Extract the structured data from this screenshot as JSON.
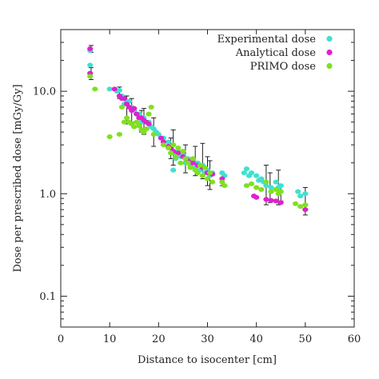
{
  "chart_data": {
    "type": "scatter",
    "xlabel": "Distance to isocenter [cm]",
    "ylabel": "Dose per prescribed dose [mGy/Gy]",
    "xlim": [
      0,
      60
    ],
    "ylim": [
      0.05,
      40
    ],
    "yscale": "log",
    "x_ticks": [
      0,
      10,
      20,
      30,
      40,
      50,
      60
    ],
    "y_ticks": [
      {
        "value": 0.1,
        "label": "0.1"
      },
      {
        "value": 1,
        "label": "1.0"
      },
      {
        "value": 10,
        "label": "10.0"
      }
    ],
    "grid": false,
    "legend_position": "top-right",
    "series": [
      {
        "name": "Experimental dose",
        "color": "#40e0d0",
        "points": [
          [
            6,
            18
          ],
          [
            6,
            25
          ],
          [
            10,
            10.5
          ],
          [
            11.5,
            10
          ],
          [
            12,
            10.2
          ],
          [
            12.5,
            9
          ],
          [
            13,
            7.5
          ],
          [
            13.5,
            8
          ],
          [
            14,
            8
          ],
          [
            14.5,
            7
          ],
          [
            15,
            6.5
          ],
          [
            15.5,
            6
          ],
          [
            16,
            6
          ],
          [
            16.5,
            5
          ],
          [
            17,
            5.5
          ],
          [
            17.5,
            5
          ],
          [
            18,
            5
          ],
          [
            18.5,
            4.5
          ],
          [
            19,
            4.3
          ],
          [
            19.5,
            4
          ],
          [
            20,
            3.8
          ],
          [
            21,
            3.5
          ],
          [
            22,
            3.2
          ],
          [
            22.5,
            2.8
          ],
          [
            23,
            2.5
          ],
          [
            23.5,
            2.2
          ],
          [
            24,
            2.6
          ],
          [
            24.5,
            2.3
          ],
          [
            25,
            2.4
          ],
          [
            25.5,
            2.0
          ],
          [
            26,
            2.2
          ],
          [
            26.5,
            1.9
          ],
          [
            27,
            2.1
          ],
          [
            27.5,
            1.8
          ],
          [
            28,
            2.0
          ],
          [
            28.5,
            1.7
          ],
          [
            29,
            1.9
          ],
          [
            29.5,
            1.6
          ],
          [
            30,
            1.7
          ],
          [
            30.5,
            1.5
          ],
          [
            31,
            1.6
          ],
          [
            23,
            1.7
          ],
          [
            33,
            1.6
          ],
          [
            33.5,
            1.5
          ],
          [
            37.5,
            1.6
          ],
          [
            38,
            1.75
          ],
          [
            38.5,
            1.5
          ],
          [
            39,
            1.6
          ],
          [
            40,
            1.5
          ],
          [
            40.5,
            1.35
          ],
          [
            41,
            1.4
          ],
          [
            41.5,
            1.3
          ],
          [
            42,
            1.2
          ],
          [
            43,
            1.15
          ],
          [
            44,
            1.3
          ],
          [
            44.5,
            1.15
          ],
          [
            45,
            1.2
          ],
          [
            48.5,
            1.05
          ],
          [
            49,
            0.95
          ],
          [
            50,
            1.0
          ]
        ]
      },
      {
        "name": "Analytical dose",
        "color": "#e020d0",
        "points": [
          [
            6,
            26
          ],
          [
            6,
            15
          ],
          [
            11,
            10.5
          ],
          [
            12,
            9
          ],
          [
            12.5,
            8.5
          ],
          [
            13,
            8.5
          ],
          [
            13.5,
            7.5
          ],
          [
            14,
            7
          ],
          [
            14.5,
            6.5
          ],
          [
            15,
            6.8
          ],
          [
            15.5,
            6
          ],
          [
            16,
            5.5
          ],
          [
            16.5,
            5.5
          ],
          [
            17,
            5.2
          ],
          [
            17.5,
            5
          ],
          [
            18,
            4.8
          ],
          [
            20.5,
            3.5
          ],
          [
            21,
            3.2
          ],
          [
            22,
            2.9
          ],
          [
            22.5,
            2.8
          ],
          [
            23,
            2.6
          ],
          [
            24,
            2.5
          ],
          [
            25,
            2.3
          ],
          [
            25.5,
            2.2
          ],
          [
            26,
            2.1
          ],
          [
            27,
            2.0
          ],
          [
            28,
            1.9
          ],
          [
            29,
            1.8
          ],
          [
            30,
            1.6
          ],
          [
            31,
            1.55
          ],
          [
            33,
            1.4
          ],
          [
            39.5,
            0.95
          ],
          [
            40,
            0.92
          ],
          [
            42,
            0.88
          ],
          [
            43,
            0.86
          ],
          [
            44,
            0.85
          ],
          [
            45,
            0.82
          ],
          [
            50,
            0.7
          ]
        ]
      },
      {
        "name": "PRIMO dose",
        "color": "#80e020",
        "points": [
          [
            6,
            14
          ],
          [
            7,
            10.5
          ],
          [
            10,
            3.6
          ],
          [
            12,
            3.8
          ],
          [
            12.5,
            7
          ],
          [
            13,
            5
          ],
          [
            13.5,
            5.5
          ],
          [
            14,
            5
          ],
          [
            14.5,
            4.8
          ],
          [
            15,
            4.5
          ],
          [
            15.5,
            5
          ],
          [
            16,
            4.6
          ],
          [
            16.5,
            4.2
          ],
          [
            17,
            4
          ],
          [
            17.5,
            4.3
          ],
          [
            18,
            6
          ],
          [
            18.5,
            7
          ],
          [
            19,
            3.8
          ],
          [
            21,
            3
          ],
          [
            22,
            2.8
          ],
          [
            22.5,
            2.5
          ],
          [
            23,
            3.0
          ],
          [
            23.5,
            2.3
          ],
          [
            24,
            2.8
          ],
          [
            24.5,
            2.0
          ],
          [
            25,
            2.6
          ],
          [
            25.5,
            2.2
          ],
          [
            26,
            2.0
          ],
          [
            26.5,
            1.8
          ],
          [
            27,
            2.2
          ],
          [
            27.5,
            1.7
          ],
          [
            28,
            1.6
          ],
          [
            28.5,
            1.9
          ],
          [
            29,
            1.5
          ],
          [
            29.5,
            1.8
          ],
          [
            30,
            1.4
          ],
          [
            30.5,
            1.6
          ],
          [
            31,
            1.3
          ],
          [
            33,
            1.3
          ],
          [
            33.5,
            1.2
          ],
          [
            38,
            1.2
          ],
          [
            39,
            1.25
          ],
          [
            40,
            1.15
          ],
          [
            41,
            1.1
          ],
          [
            42,
            1.3
          ],
          [
            43,
            1.05
          ],
          [
            44,
            1.1
          ],
          [
            44.5,
            1.0
          ],
          [
            45,
            1.05
          ],
          [
            48,
            0.8
          ],
          [
            49,
            0.75
          ],
          [
            50,
            0.78
          ]
        ]
      }
    ],
    "error_bars": [
      {
        "x": 6.2,
        "y": 26,
        "low": 24,
        "high": 28
      },
      {
        "x": 6.2,
        "y": 14.5,
        "low": 13,
        "high": 17
      },
      {
        "x": 12,
        "y": 9.5,
        "low": 8.5,
        "high": 11
      },
      {
        "x": 13.5,
        "y": 7.2,
        "low": 4.8,
        "high": 9
      },
      {
        "x": 14.5,
        "y": 7,
        "low": 5,
        "high": 8.5
      },
      {
        "x": 16.5,
        "y": 5.2,
        "low": 4,
        "high": 6.5
      },
      {
        "x": 17,
        "y": 5,
        "low": 3.8,
        "high": 6.8
      },
      {
        "x": 19,
        "y": 4.2,
        "low": 2.9,
        "high": 5.5
      },
      {
        "x": 22.5,
        "y": 2.9,
        "low": 2.2,
        "high": 3.5
      },
      {
        "x": 23,
        "y": 2.6,
        "low": 1.9,
        "high": 4.2
      },
      {
        "x": 25.5,
        "y": 2.3,
        "low": 1.6,
        "high": 3.0
      },
      {
        "x": 27.5,
        "y": 2.1,
        "low": 1.5,
        "high": 2.9
      },
      {
        "x": 29,
        "y": 2.0,
        "low": 1.4,
        "high": 3.1
      },
      {
        "x": 30,
        "y": 1.6,
        "low": 1.2,
        "high": 2.3
      },
      {
        "x": 30.5,
        "y": 1.5,
        "low": 1.1,
        "high": 2.1
      },
      {
        "x": 33,
        "y": 1.4,
        "low": 1.2,
        "high": 1.6
      },
      {
        "x": 42,
        "y": 0.87,
        "low": 0.78,
        "high": 1.9
      },
      {
        "x": 42.8,
        "y": 1.1,
        "low": 0.82,
        "high": 1.6
      },
      {
        "x": 44.5,
        "y": 0.85,
        "low": 0.78,
        "high": 1.7
      },
      {
        "x": 45,
        "y": 1.0,
        "low": 0.85,
        "high": 1.2
      },
      {
        "x": 50,
        "y": 0.75,
        "low": 0.62,
        "high": 1.15
      }
    ]
  }
}
